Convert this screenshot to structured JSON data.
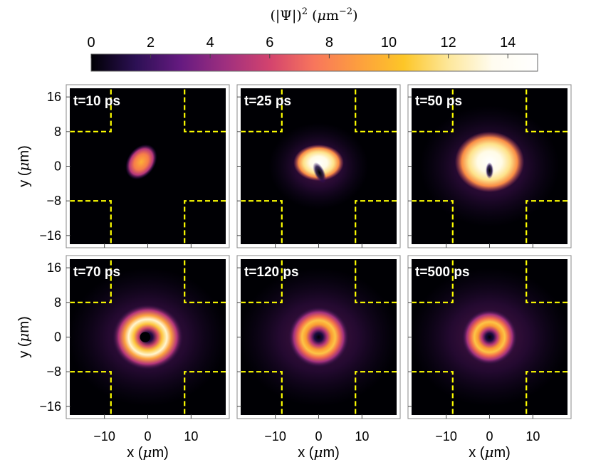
{
  "chart_data": {
    "type": "heatmap",
    "colorbar": {
      "title_prefix": "(|Ψ|)",
      "title_power": "2",
      "title_unit_symbol": "μ",
      "title_unit_m": "m",
      "title_unit_power": "−2",
      "range": [
        0,
        15
      ],
      "ticks": [
        0,
        2,
        4,
        6,
        8,
        10,
        12,
        14
      ],
      "tick_labels": [
        "0",
        "2",
        "4",
        "6",
        "8",
        "10",
        "12",
        "14"
      ],
      "colormap": [
        "#000004",
        "#2c1054",
        "#651a80",
        "#9e2f7f",
        "#d3436e",
        "#f8765c",
        "#fd9f3e",
        "#fdc627",
        "#fde79a",
        "#fffcf0",
        "#ffffff"
      ]
    },
    "x_axis": {
      "label_letter": "x",
      "label_unit_symbol": "μ",
      "label_unit_m": "m",
      "range": [
        -18,
        18
      ],
      "ticks": [
        -10,
        0,
        10
      ],
      "tick_labels": [
        "−10",
        "0",
        "10"
      ]
    },
    "y_axis": {
      "label_letter": "y",
      "label_unit_symbol": "μ",
      "label_unit_m": "m",
      "range": [
        -18,
        18
      ],
      "ticks": [
        -16,
        -8,
        0,
        8,
        16
      ],
      "tick_labels": [
        "−16",
        "−8",
        "0",
        "8",
        "16"
      ]
    },
    "boundary": {
      "style": "dashed",
      "color": "#ffff00",
      "x_edge": 8.5,
      "y_edge": 8.0
    },
    "panels": [
      {
        "label": "t=10 ps",
        "time_ps": 10
      },
      {
        "label": "t=25 ps",
        "time_ps": 25
      },
      {
        "label": "t=50 ps",
        "time_ps": 50
      },
      {
        "label": "t=70 ps",
        "time_ps": 70
      },
      {
        "label": "t=120 ps",
        "time_ps": 120
      },
      {
        "label": "t=500 ps",
        "time_ps": 500
      }
    ]
  }
}
